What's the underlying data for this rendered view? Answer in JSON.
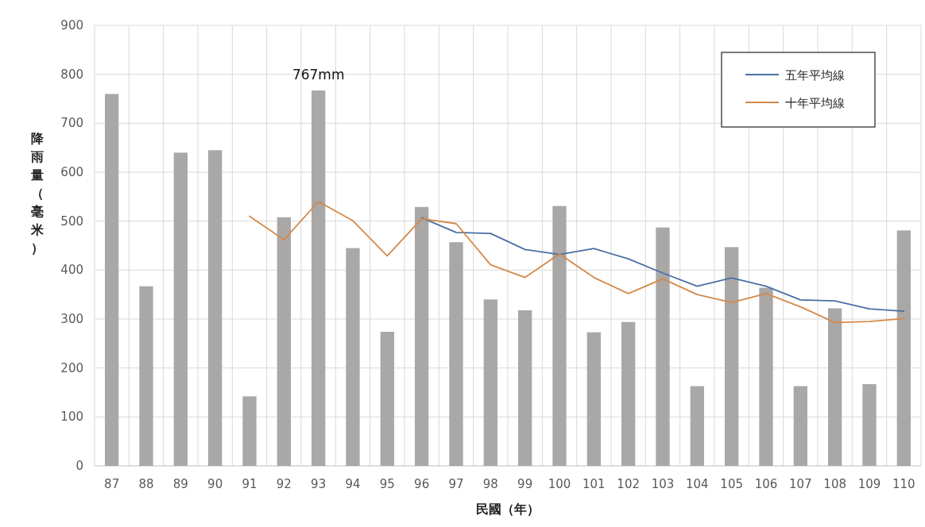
{
  "chart_data": {
    "type": "bar",
    "xlabel": "民國（年）",
    "ylabel": "降雨量（毫米）",
    "categories": [
      "87",
      "88",
      "89",
      "90",
      "91",
      "92",
      "93",
      "94",
      "95",
      "96",
      "97",
      "98",
      "99",
      "100",
      "101",
      "102",
      "103",
      "104",
      "105",
      "106",
      "107",
      "108",
      "109",
      "110"
    ],
    "values": [
      760,
      367,
      640,
      645,
      142,
      508,
      767,
      445,
      274,
      529,
      457,
      340,
      318,
      531,
      273,
      294,
      487,
      163,
      447,
      364,
      163,
      322,
      167,
      481
    ],
    "color": "#aaa7a7",
    "series": [
      {
        "name": "五年平均線",
        "type": "line",
        "color": "#4a6fa5",
        "values": [
          null,
          null,
          null,
          null,
          null,
          null,
          null,
          null,
          null,
          507,
          477,
          475,
          442,
          432,
          444,
          423,
          394,
          367,
          384,
          367,
          339,
          337,
          321,
          316
        ]
      },
      {
        "name": "十年平均線",
        "type": "line",
        "color": "#d4894a",
        "values": [
          null,
          null,
          null,
          null,
          510,
          462,
          540,
          501,
          429,
          505,
          495,
          411,
          385,
          433,
          385,
          352,
          382,
          350,
          334,
          352,
          325,
          293,
          295,
          301
        ]
      }
    ],
    "annotations": [
      {
        "text": "767mm",
        "x": "93",
        "y": 767
      }
    ],
    "ylim": [
      0,
      900
    ],
    "yticks": [
      0,
      100,
      200,
      300,
      400,
      500,
      600,
      700,
      800,
      900
    ],
    "grid": true,
    "legend": "top right"
  }
}
